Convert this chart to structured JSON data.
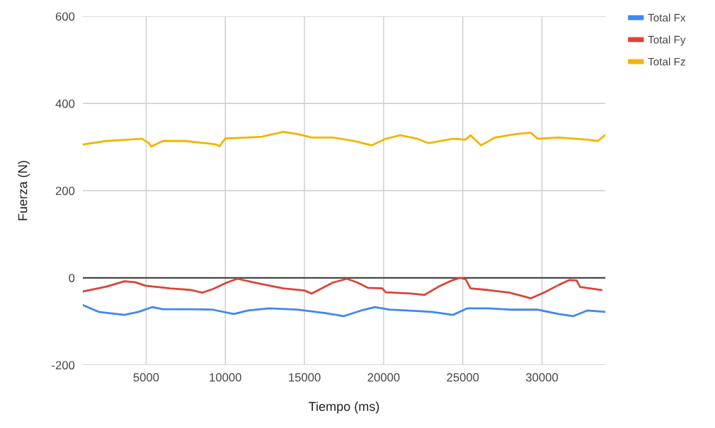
{
  "chart_data": {
    "type": "line",
    "xlabel": "Tiempo (ms)",
    "ylabel": "Fuerza (N)",
    "xlim": [
      1000,
      34000
    ],
    "xticks": [
      5000,
      10000,
      15000,
      20000,
      25000,
      30000
    ],
    "ylim": [
      -200,
      600
    ],
    "yticks": [
      -200,
      0,
      200,
      400,
      600
    ],
    "grid": true,
    "legend": "top right",
    "marker": "none",
    "line_style": "solid",
    "ref_lines": [
      {
        "axis": "y",
        "value": 0,
        "color": "#333333"
      }
    ],
    "series": [
      {
        "name": "Total Fx",
        "color": "#4285f4",
        "x": [
          1030,
          2000,
          3620,
          4510,
          5400,
          6070,
          7860,
          9200,
          10540,
          11430,
          12770,
          14550,
          16340,
          17460,
          18570,
          19460,
          20360,
          21470,
          23040,
          24380,
          25270,
          26610,
          27950,
          29730,
          31070,
          31960,
          32860,
          33970
        ],
        "values": [
          -63,
          -78,
          -85,
          -78,
          -67,
          -72,
          -72,
          -73,
          -83,
          -75,
          -70,
          -73,
          -81,
          -88,
          -75,
          -67,
          -73,
          -75,
          -78,
          -85,
          -70,
          -70,
          -73,
          -73,
          -83,
          -88,
          -75,
          -78
        ]
      },
      {
        "name": "Total Fy",
        "color": "#db4437",
        "x": [
          1030,
          2500,
          3620,
          4290,
          4960,
          6520,
          7860,
          8530,
          9200,
          10090,
          10760,
          11880,
          13660,
          15000,
          15450,
          16790,
          17680,
          18350,
          19020,
          19910,
          20130,
          21700,
          22590,
          23480,
          24380,
          24820,
          25180,
          25490,
          26610,
          27950,
          29290,
          30180,
          31070,
          31740,
          32190,
          32410,
          33750
        ],
        "values": [
          -31,
          -20,
          -8,
          -10,
          -18,
          -24,
          -28,
          -34,
          -26,
          -11,
          -2,
          -11,
          -24,
          -29,
          -36,
          -11,
          -2,
          -11,
          -23,
          -24,
          -33,
          -36,
          -39,
          -20,
          -5,
          0,
          -3,
          -24,
          -28,
          -34,
          -47,
          -33,
          -16,
          -5,
          -6,
          -21,
          -28
        ]
      },
      {
        "name": "Total Fz",
        "color": "#f4b400",
        "x": [
          1030,
          2500,
          3840,
          4730,
          5180,
          5310,
          6070,
          7410,
          8750,
          9420,
          9640,
          10000,
          11430,
          12320,
          13660,
          14550,
          15450,
          16790,
          18130,
          19240,
          20130,
          21030,
          22140,
          22810,
          24380,
          25180,
          25490,
          26160,
          27050,
          28390,
          29290,
          29730,
          31070,
          32860,
          33530,
          33970
        ],
        "values": [
          306,
          314,
          317,
          319,
          309,
          301,
          314,
          314,
          309,
          306,
          302,
          320,
          322,
          324,
          335,
          330,
          322,
          322,
          314,
          304,
          319,
          327,
          319,
          309,
          319,
          317,
          327,
          304,
          322,
          330,
          333,
          319,
          322,
          317,
          314,
          327
        ]
      }
    ]
  }
}
